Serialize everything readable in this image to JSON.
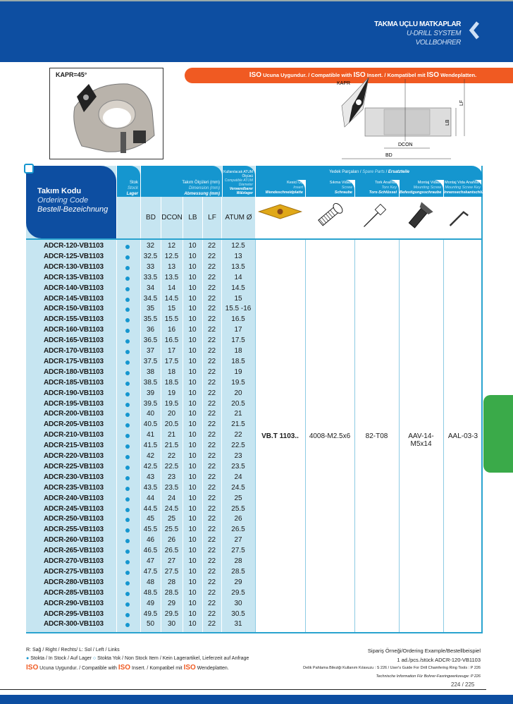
{
  "header": {
    "title": "TAKMA UÇLU MATKAPLAR",
    "subtitle_en": "U-DRILL SYSTEM",
    "subtitle_de": "VOLLBOHRER"
  },
  "iso_banner": {
    "iso": "ISO",
    "tr": " Ucuna Uygundur. / Compatible with ",
    "en": " Insert. / Kompatibel mit ",
    "de": " Wendeplatten."
  },
  "photo": {
    "kapr_label": "KAPR=45°"
  },
  "diagram": {
    "kapr": "KAPR",
    "dcon": "DCON",
    "bd": "BD",
    "lb": "LB",
    "lf": "LF"
  },
  "table": {
    "code_header": {
      "tr": "Takım Kodu",
      "en": "Ordering Code",
      "de": "Bestell-Bezeichnung"
    },
    "stock_header": {
      "tr": "Stok",
      "en": "Stock",
      "de": "Lager"
    },
    "dim_header": {
      "tr": "Takım Ölçüleri (mm)",
      "en": "Dimension (mm)",
      "de": "Abmessung (mm)"
    },
    "atum_header": {
      "tr": "Kullanılacak ATUM Ölçüsü",
      "en": "Compatible ATUM Diameter",
      "de": "Verwendbarer Wälzlager"
    },
    "spare_header": {
      "tr": "Yedek Parçaları",
      "en": "Spare Parts",
      "de": "Ersatzteile"
    },
    "columns": [
      "BD",
      "DCON",
      "LB",
      "LF",
      "ATUM Ø"
    ],
    "spare_columns": [
      {
        "tr": "Kesici Uç",
        "en": "Insert",
        "de": "Wendeschneidplatte",
        "icon": "insert-icon"
      },
      {
        "tr": "Sıkma Vidası",
        "en": "Screw",
        "de": "Schraube",
        "icon": "screw-icon"
      },
      {
        "tr": "Tork Anahtar",
        "en": "Torx Key",
        "de": "Torx-Schlüssel",
        "icon": "torx-key-icon"
      },
      {
        "tr": "Montaj Vidası",
        "en": "Mounting Screw",
        "de": "Befestigungsschraube",
        "icon": "mounting-screw-icon"
      },
      {
        "tr": "Montaj Vida Anahtarı",
        "en": "Mounting Screw Key",
        "de": "Innensechskantschlüssel",
        "icon": "hex-key-icon"
      }
    ],
    "spare_values": [
      "VB.T 1103..",
      "4008-M2.5x6",
      "82-T08",
      "AAV-14-M5x14",
      "AAL-03-3"
    ],
    "rows": [
      [
        "ADCR-120-VB1103",
        "32",
        "12",
        "10",
        "22",
        "12.5"
      ],
      [
        "ADCR-125-VB1103",
        "32.5",
        "12.5",
        "10",
        "22",
        "13"
      ],
      [
        "ADCR-130-VB1103",
        "33",
        "13",
        "10",
        "22",
        "13.5"
      ],
      [
        "ADCR-135-VB1103",
        "33.5",
        "13.5",
        "10",
        "22",
        "14"
      ],
      [
        "ADCR-140-VB1103",
        "34",
        "14",
        "10",
        "22",
        "14.5"
      ],
      [
        "ADCR-145-VB1103",
        "34.5",
        "14.5",
        "10",
        "22",
        "15"
      ],
      [
        "ADCR-150-VB1103",
        "35",
        "15",
        "10",
        "22",
        "15.5 -16"
      ],
      [
        "ADCR-155-VB1103",
        "35.5",
        "15.5",
        "10",
        "22",
        "16.5"
      ],
      [
        "ADCR-160-VB1103",
        "36",
        "16",
        "10",
        "22",
        "17"
      ],
      [
        "ADCR-165-VB1103",
        "36.5",
        "16.5",
        "10",
        "22",
        "17.5"
      ],
      [
        "ADCR-170-VB1103",
        "37",
        "17",
        "10",
        "22",
        "18"
      ],
      [
        "ADCR-175-VB1103",
        "37.5",
        "17.5",
        "10",
        "22",
        "18.5"
      ],
      [
        "ADCR-180-VB1103",
        "38",
        "18",
        "10",
        "22",
        "19"
      ],
      [
        "ADCR-185-VB1103",
        "38.5",
        "18.5",
        "10",
        "22",
        "19.5"
      ],
      [
        "ADCR-190-VB1103",
        "39",
        "19",
        "10",
        "22",
        "20"
      ],
      [
        "ADCR-195-VB1103",
        "39.5",
        "19.5",
        "10",
        "22",
        "20.5"
      ],
      [
        "ADCR-200-VB1103",
        "40",
        "20",
        "10",
        "22",
        "21"
      ],
      [
        "ADCR-205-VB1103",
        "40.5",
        "20.5",
        "10",
        "22",
        "21.5"
      ],
      [
        "ADCR-210-VB1103",
        "41",
        "21",
        "10",
        "22",
        "22"
      ],
      [
        "ADCR-215-VB1103",
        "41.5",
        "21.5",
        "10",
        "22",
        "22.5"
      ],
      [
        "ADCR-220-VB1103",
        "42",
        "22",
        "10",
        "22",
        "23"
      ],
      [
        "ADCR-225-VB1103",
        "42.5",
        "22.5",
        "10",
        "22",
        "23.5"
      ],
      [
        "ADCR-230-VB1103",
        "43",
        "23",
        "10",
        "22",
        "24"
      ],
      [
        "ADCR-235-VB1103",
        "43.5",
        "23.5",
        "10",
        "22",
        "24.5"
      ],
      [
        "ADCR-240-VB1103",
        "44",
        "24",
        "10",
        "22",
        "25"
      ],
      [
        "ADCR-245-VB1103",
        "44.5",
        "24.5",
        "10",
        "22",
        "25.5"
      ],
      [
        "ADCR-250-VB1103",
        "45",
        "25",
        "10",
        "22",
        "26"
      ],
      [
        "ADCR-255-VB1103",
        "45.5",
        "25.5",
        "10",
        "22",
        "26.5"
      ],
      [
        "ADCR-260-VB1103",
        "46",
        "26",
        "10",
        "22",
        "27"
      ],
      [
        "ADCR-265-VB1103",
        "46.5",
        "26.5",
        "10",
        "22",
        "27.5"
      ],
      [
        "ADCR-270-VB1103",
        "47",
        "27",
        "10",
        "22",
        "28"
      ],
      [
        "ADCR-275-VB1103",
        "47.5",
        "27.5",
        "10",
        "22",
        "28.5"
      ],
      [
        "ADCR-280-VB1103",
        "48",
        "28",
        "10",
        "22",
        "29"
      ],
      [
        "ADCR-285-VB1103",
        "48.5",
        "28.5",
        "10",
        "22",
        "29.5"
      ],
      [
        "ADCR-290-VB1103",
        "49",
        "29",
        "10",
        "22",
        "30"
      ],
      [
        "ADCR-295-VB1103",
        "49.5",
        "29.5",
        "10",
        "22",
        "30.5"
      ],
      [
        "ADCR-300-VB1103",
        "50",
        "30",
        "10",
        "22",
        "31"
      ]
    ],
    "stock_color": "#1596cf"
  },
  "footer": {
    "legend1": "R: Sağ / Right / Rechts/  L: Sol / Left / Links",
    "legend2": "Stokta / In Stock / Auf Lager",
    "legend3": "Stokta Yok / Non Stock Item / Kein Lagerartikel, Lieferzeit auf Anfrage",
    "order_example_label": "Sipariş Örneği/Ordering Example/Bestellbeispiel",
    "order_example": "1 ad./pcs./stück  ADCR-120-VB1103",
    "guide": "Delik Pahlama Bileziği Kullanım Kılavuzu : S 226 / User's Guide For Drill Chamfering Ring Tools : P 226",
    "tech": "Technische Information Für Bohrer-Fasringwerkzeuge: P 226",
    "page": "224 / 225"
  },
  "colors": {
    "brand_blue": "#0d4ea1",
    "accent_orange": "#f05a22",
    "table_blue": "#1596cf",
    "side_tab_green": "#3aaa49"
  }
}
